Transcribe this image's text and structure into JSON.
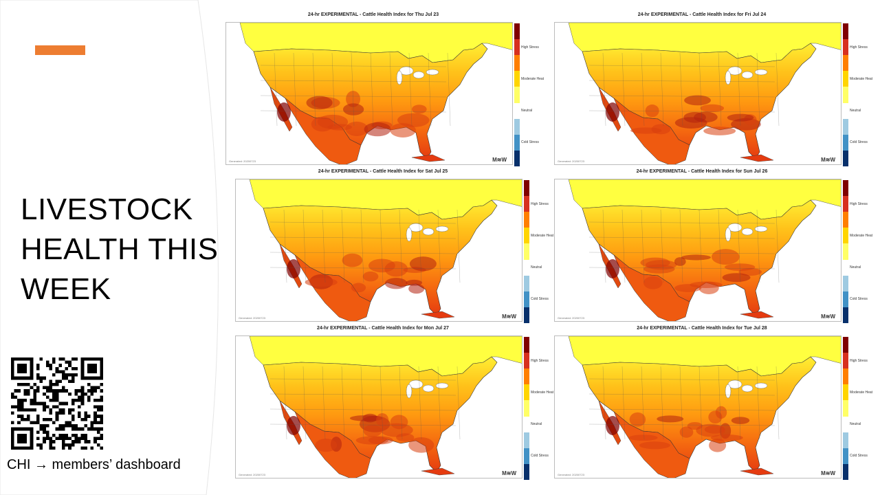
{
  "slide": {
    "title": "LIVESTOCK\nHEALTH THIS\nWEEK",
    "accent_color": "#ed7d31",
    "qr_caption": "CHI → members’ dashboard"
  },
  "legend": {
    "axis_label": "Cattle Health Index",
    "levels": [
      "High Stress",
      "Moderate Heat",
      "Neutral",
      "Cold Stress"
    ],
    "colors": [
      "#7f0000",
      "#d7301f",
      "#ff7f00",
      "#ffd500",
      "#ffff66",
      "#ffffff",
      "#9ecae1",
      "#4292c6",
      "#08306b"
    ]
  },
  "maps": [
    {
      "title": "24-hr EXPERIMENTAL - Cattle Health Index for Thu Jul 23",
      "generated": "Generated: 20200723",
      "heat": 0.65
    },
    {
      "title": "24-hr EXPERIMENTAL - Cattle Health Index for Fri Jul 24",
      "generated": "Generated: 20200723",
      "heat": 0.6
    },
    {
      "title": "24-hr EXPERIMENTAL - Cattle Health Index for Sat Jul 25",
      "generated": "Generated: 20200723",
      "heat": 0.62
    },
    {
      "title": "24-hr EXPERIMENTAL - Cattle Health Index for Sun Jul 26",
      "generated": "Generated: 20200723",
      "heat": 0.7
    },
    {
      "title": "24-hr EXPERIMENTAL - Cattle Health Index for Mon Jul 27",
      "generated": "Generated: 20200723",
      "heat": 0.72
    },
    {
      "title": "24-hr EXPERIMENTAL - Cattle Health Index for Tue Jul 28",
      "generated": "Generated: 20200723",
      "heat": 0.75
    }
  ]
}
